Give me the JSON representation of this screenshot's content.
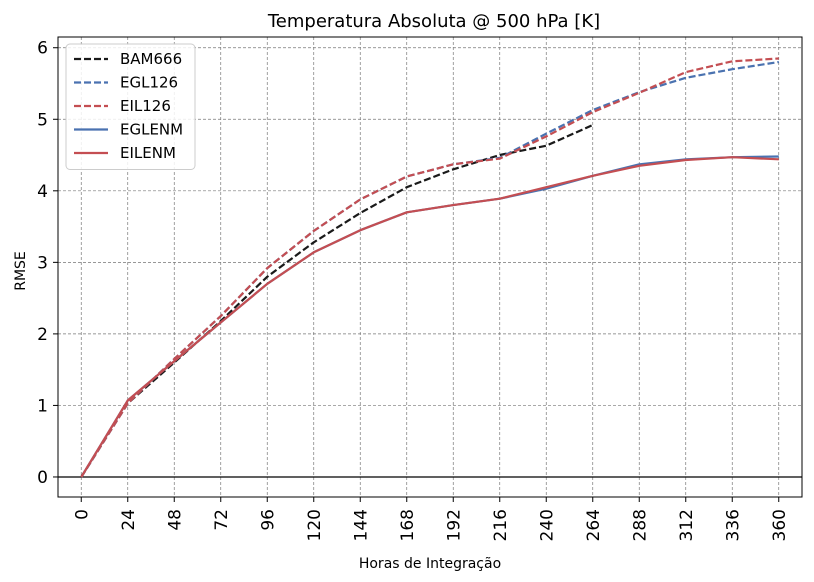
{
  "chart_data": {
    "type": "line",
    "title": "Temperatura Absoluta @ 500 hPa [K]",
    "xlabel": "Horas de Integração",
    "ylabel": "RMSE",
    "x": [
      0,
      24,
      48,
      72,
      96,
      120,
      144,
      168,
      192,
      216,
      240,
      264,
      288,
      312,
      336,
      360
    ],
    "xlim": [
      -12,
      372
    ],
    "ylim": [
      -0.28,
      6.15
    ],
    "yticks": [
      0,
      1,
      2,
      3,
      4,
      5,
      6
    ],
    "grid": true,
    "legend_position": "top-left",
    "series": [
      {
        "name": "BAM666",
        "color": "#1a1a1a",
        "dash": "dashed",
        "values": [
          0,
          1.03,
          1.6,
          2.18,
          2.8,
          3.28,
          3.69,
          4.05,
          4.3,
          4.5,
          4.63,
          4.92,
          null,
          null,
          null,
          null
        ]
      },
      {
        "name": "EGL126",
        "color": "#4a72b0",
        "dash": "dashed",
        "values": [
          0,
          1.03,
          1.65,
          2.25,
          2.92,
          3.44,
          3.88,
          4.2,
          4.37,
          4.46,
          4.8,
          5.13,
          5.38,
          5.58,
          5.7,
          5.8
        ]
      },
      {
        "name": "EIL126",
        "color": "#c44e52",
        "dash": "dashed",
        "values": [
          0,
          1.03,
          1.65,
          2.25,
          2.92,
          3.44,
          3.88,
          4.2,
          4.37,
          4.45,
          4.76,
          5.1,
          5.37,
          5.66,
          5.81,
          5.85
        ]
      },
      {
        "name": "EGLENM",
        "color": "#4a72b0",
        "dash": "solid",
        "values": [
          0,
          1.07,
          1.62,
          2.16,
          2.7,
          3.14,
          3.45,
          3.7,
          3.8,
          3.89,
          4.03,
          4.21,
          4.37,
          4.44,
          4.47,
          4.48
        ]
      },
      {
        "name": "EILENM",
        "color": "#c44e52",
        "dash": "solid",
        "values": [
          0,
          1.07,
          1.62,
          2.16,
          2.7,
          3.14,
          3.45,
          3.7,
          3.8,
          3.89,
          4.05,
          4.21,
          4.35,
          4.43,
          4.47,
          4.44
        ]
      }
    ]
  }
}
